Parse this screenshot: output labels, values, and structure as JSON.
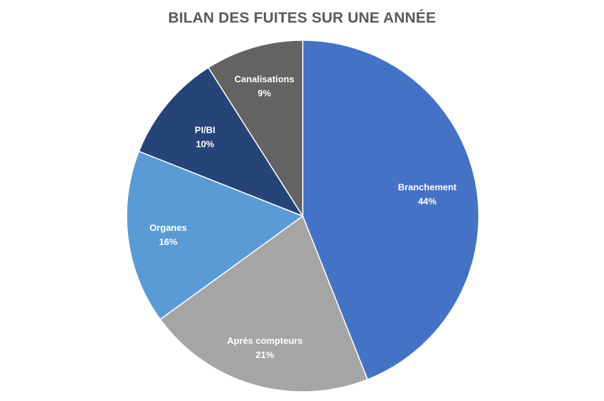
{
  "chart_data": {
    "type": "pie",
    "title": "BILAN DES FUITES SUR UNE ANNÉE",
    "slices": [
      {
        "label": "Branchement",
        "value": 44,
        "value_label": "44%",
        "color": "#4472c4"
      },
      {
        "label": "Après compteurs",
        "value": 21,
        "value_label": "21%",
        "color": "#a5a5a5"
      },
      {
        "label": "Organes",
        "value": 16,
        "value_label": "16%",
        "color": "#5b9bd5"
      },
      {
        "label": "PI/BI",
        "value": 10,
        "value_label": "10%",
        "color": "#264478"
      },
      {
        "label": "Canalisations",
        "value": 9,
        "value_label": "9%",
        "color": "#636363"
      }
    ],
    "start_angle_deg": 0,
    "direction": "clockwise",
    "legend": "none"
  }
}
